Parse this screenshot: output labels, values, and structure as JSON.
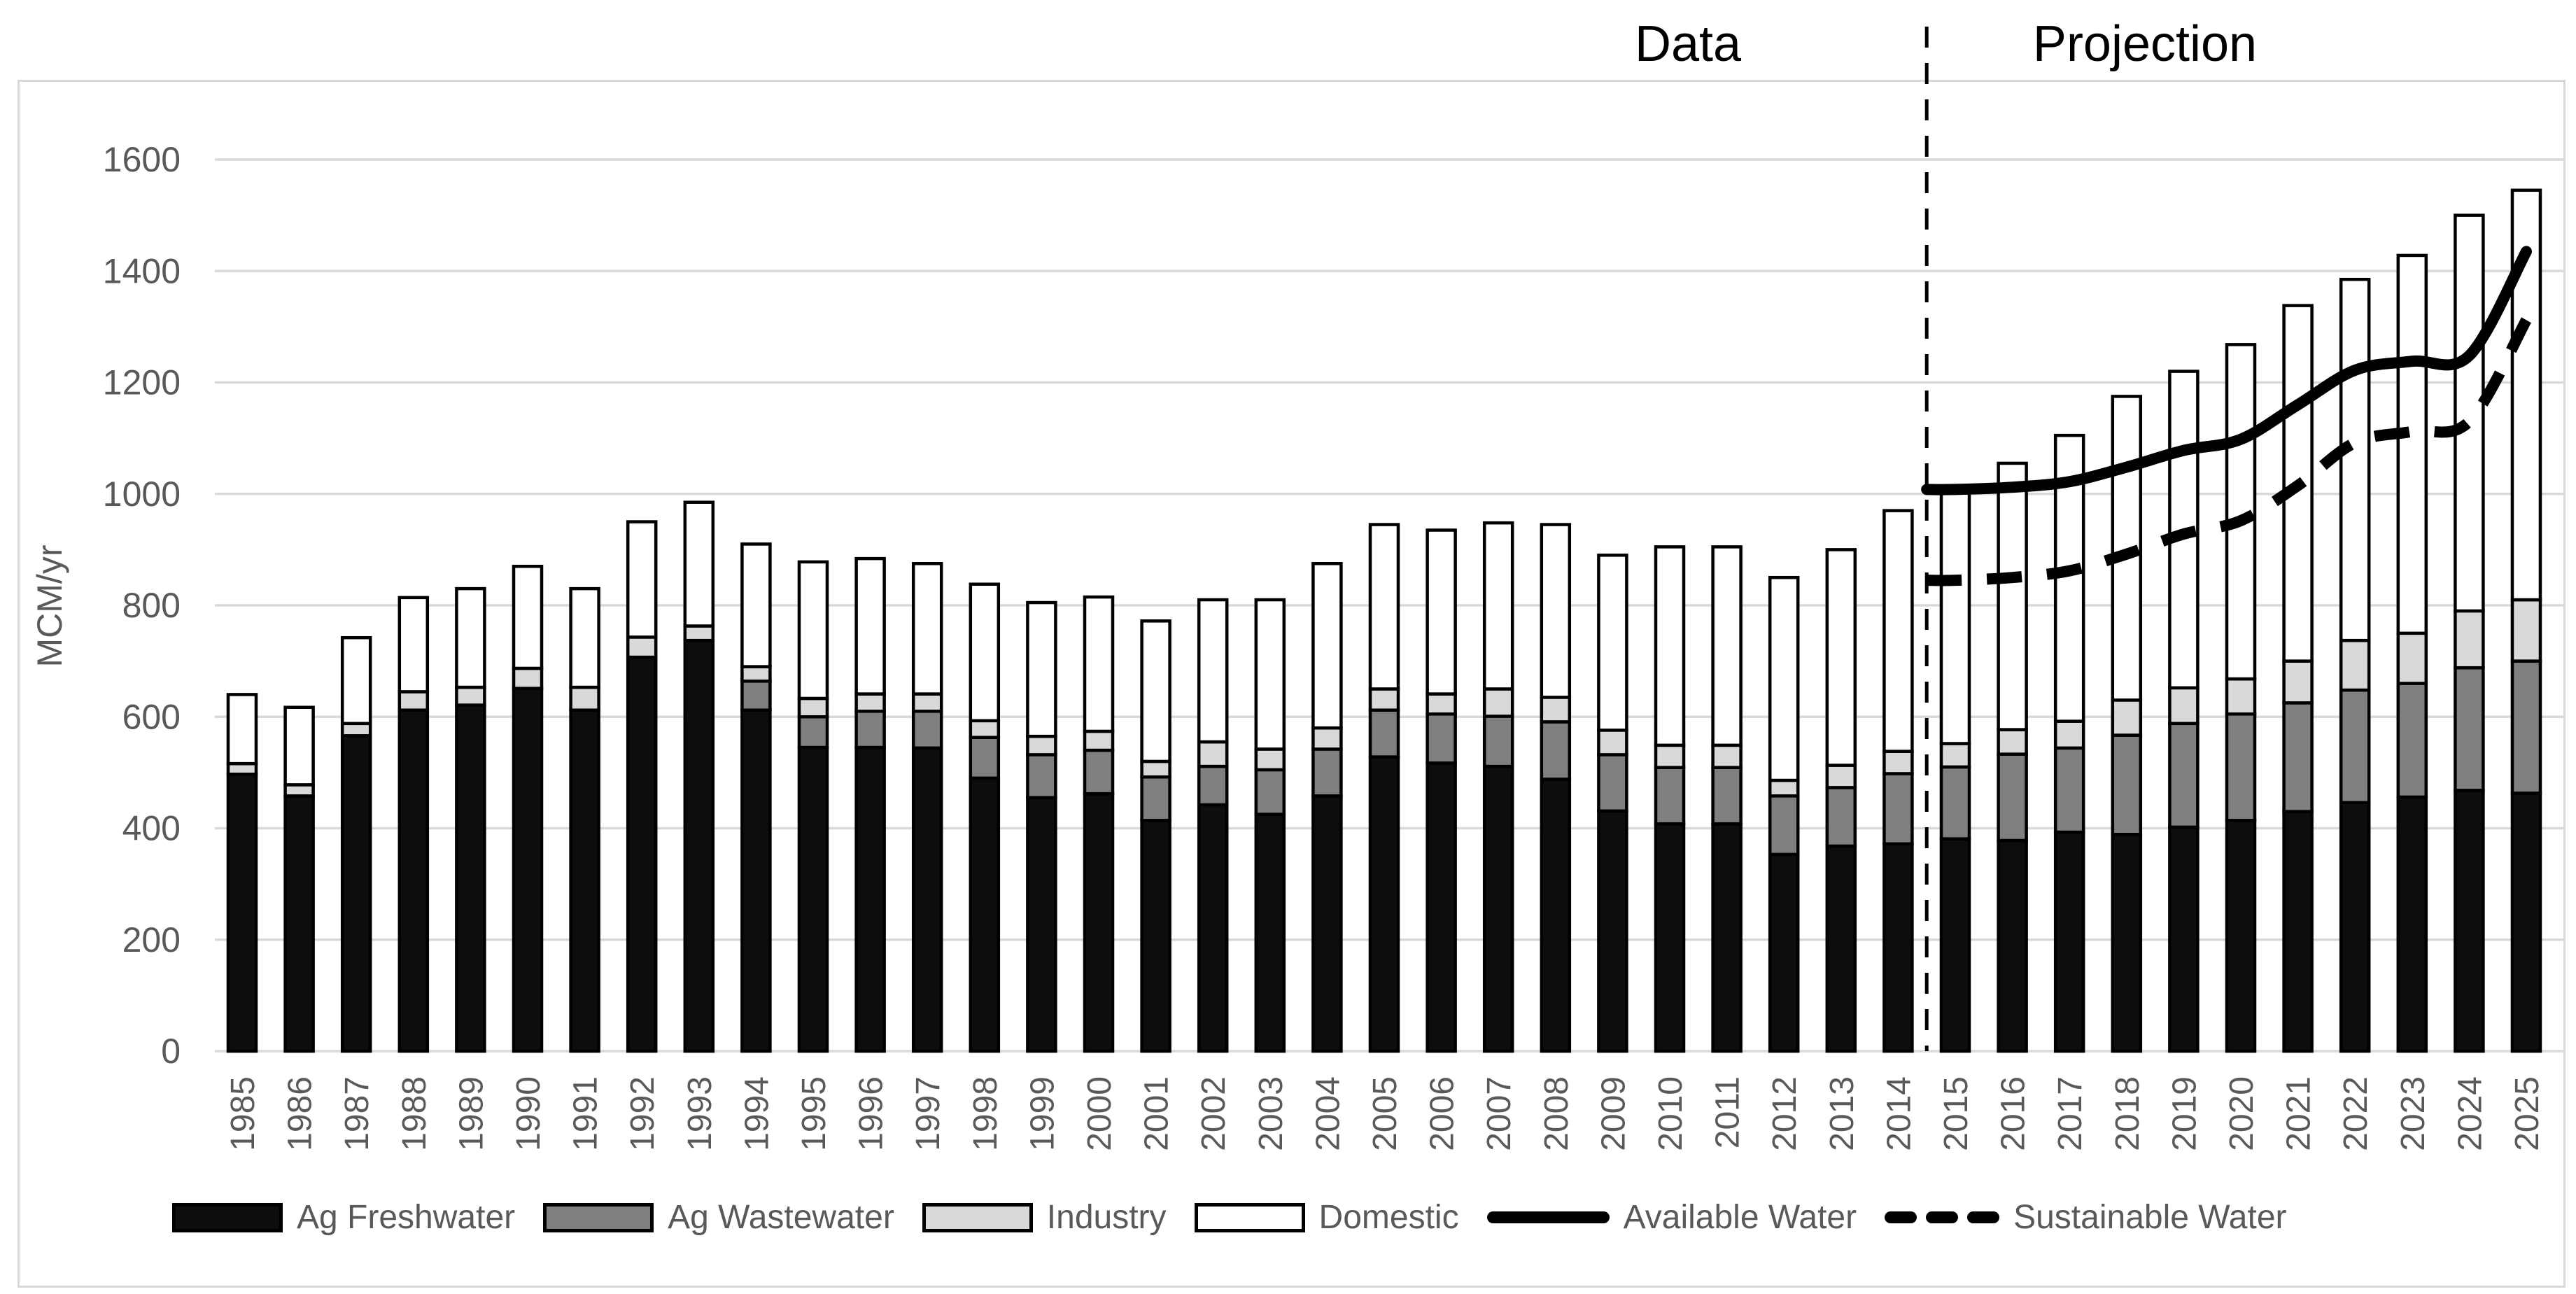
{
  "annotations": {
    "data_label": "Data",
    "projection_label": "Projection",
    "divider_after_year": "2014"
  },
  "y_axis": {
    "label": "MCM/yr",
    "ticks": [
      0,
      200,
      400,
      600,
      800,
      1000,
      1200,
      1400,
      1600
    ]
  },
  "legend": {
    "ag_freshwater": "Ag Freshwater",
    "ag_wastewater": "Ag Wastewater",
    "industry": "Industry",
    "domestic": "Domestic",
    "available": "Available Water",
    "sustainable": "Sustainable Water"
  },
  "chart_data": {
    "type": "bar",
    "subtype": "stacked-bars-with-projection-lines",
    "title": "",
    "xlabel": "",
    "ylabel": "MCM/yr",
    "ylim": [
      0,
      1600
    ],
    "grid": true,
    "legend_position": "bottom",
    "categories": [
      1985,
      1986,
      1987,
      1988,
      1989,
      1990,
      1991,
      1992,
      1993,
      1994,
      1995,
      1996,
      1997,
      1998,
      1999,
      2000,
      2001,
      2002,
      2003,
      2004,
      2005,
      2006,
      2007,
      2008,
      2009,
      2010,
      2011,
      2012,
      2013,
      2014,
      2015,
      2016,
      2017,
      2018,
      2019,
      2020,
      2021,
      2022,
      2023,
      2024,
      2025
    ],
    "series": [
      {
        "name": "Ag Freshwater",
        "color": "#0d0d0d",
        "values": [
          497,
          458,
          566,
          612,
          621,
          651,
          612,
          707,
          737,
          612,
          545,
          545,
          544,
          490,
          455,
          462,
          414,
          442,
          425,
          458,
          528,
          517,
          511,
          488,
          431,
          408,
          408,
          353,
          368,
          372,
          381,
          378,
          393,
          389,
          402,
          414,
          430,
          446,
          456,
          468,
          463
        ]
      },
      {
        "name": "Ag Wastewater",
        "color": "#7f7f7f",
        "values": [
          0,
          0,
          0,
          0,
          0,
          0,
          0,
          0,
          0,
          52,
          55,
          65,
          66,
          73,
          77,
          78,
          78,
          69,
          80,
          84,
          84,
          88,
          90,
          103,
          101,
          101,
          101,
          105,
          105,
          126,
          129,
          155,
          151,
          178,
          186,
          191,
          195,
          202,
          204,
          220,
          237
        ]
      },
      {
        "name": "Industry",
        "color": "#d9d9d9",
        "values": [
          19,
          20,
          22,
          33,
          32,
          36,
          41,
          36,
          26,
          26,
          33,
          31,
          31,
          30,
          33,
          34,
          28,
          44,
          37,
          38,
          38,
          36,
          49,
          44,
          44,
          40,
          40,
          28,
          40,
          40,
          42,
          44,
          48,
          63,
          64,
          63,
          75,
          89,
          90,
          102,
          110
        ]
      },
      {
        "name": "Domestic",
        "color": "#ffffff",
        "values": [
          124,
          139,
          154,
          169,
          177,
          183,
          177,
          207,
          222,
          220,
          245,
          243,
          234,
          245,
          240,
          241,
          252,
          255,
          268,
          295,
          295,
          294,
          298,
          310,
          314,
          356,
          356,
          364,
          387,
          432,
          456,
          478,
          513,
          545,
          568,
          600,
          638,
          648,
          678,
          710,
          735
        ]
      }
    ],
    "lines": [
      {
        "name": "Available Water",
        "style": "solid",
        "color": "#000000",
        "start_year": 2015,
        "values": [
          1008,
          1012,
          1022,
          1048,
          1078,
          1098,
          1160,
          1222,
          1238,
          1248,
          1435
        ]
      },
      {
        "name": "Sustainable Water",
        "style": "dashed",
        "color": "#000000",
        "start_year": 2015,
        "values": [
          845,
          850,
          862,
          892,
          928,
          952,
          1015,
          1092,
          1112,
          1130,
          1312
        ]
      }
    ]
  }
}
